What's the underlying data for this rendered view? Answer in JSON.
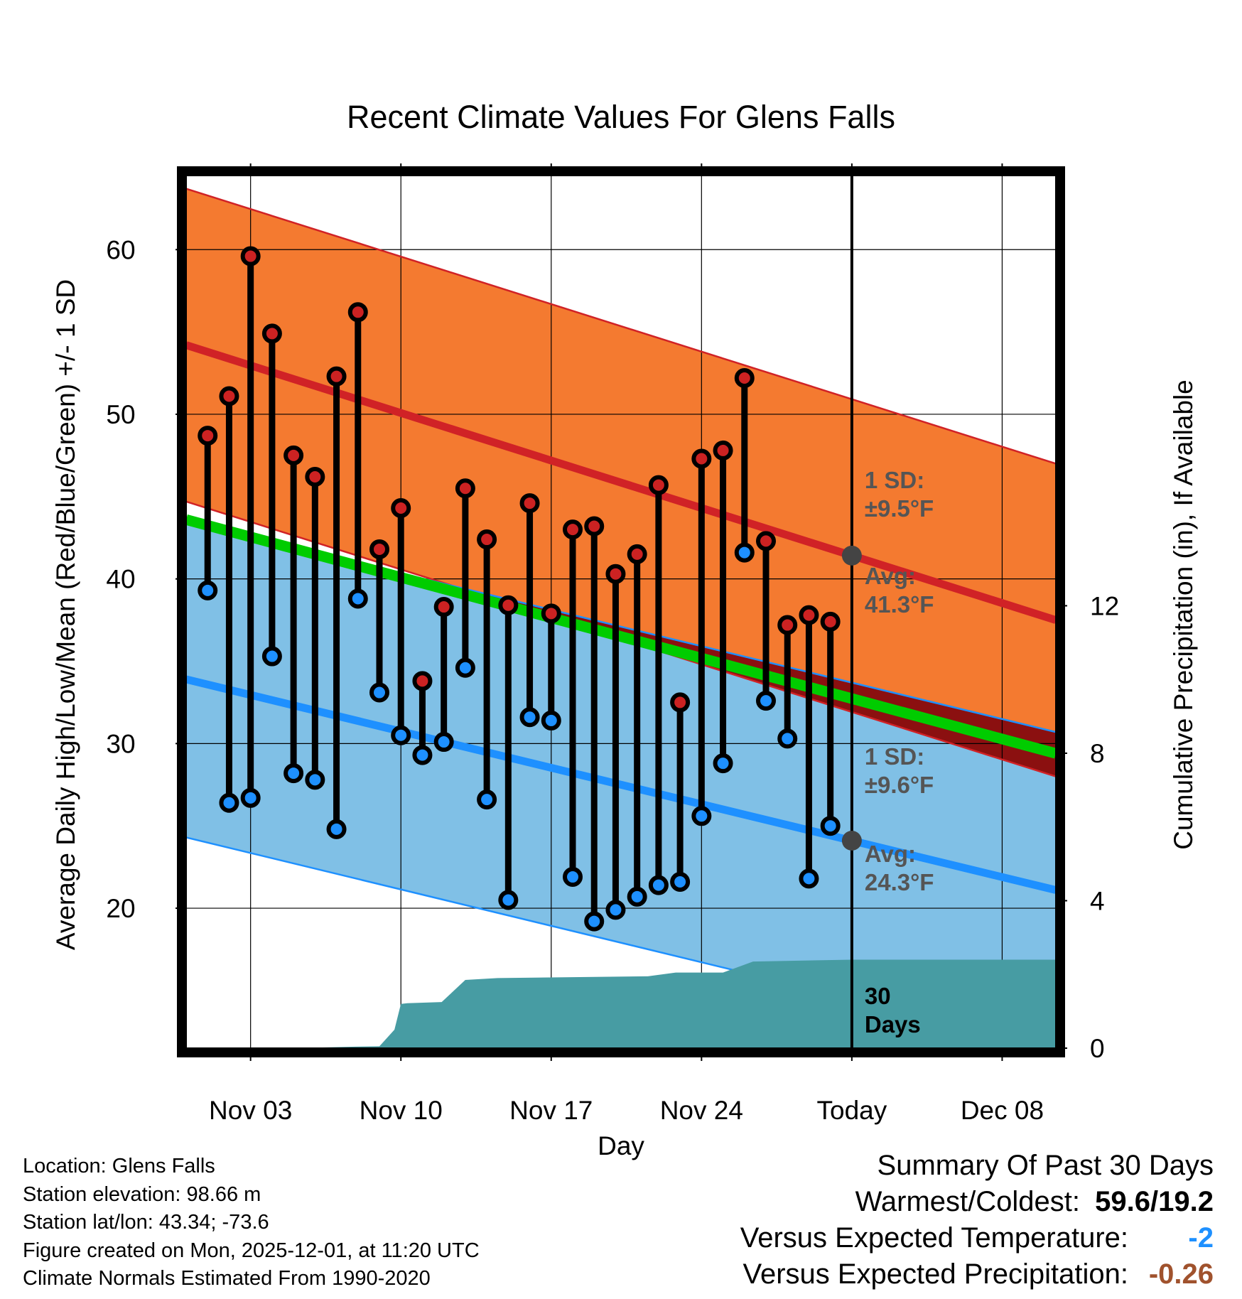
{
  "chart_data": {
    "type": "line",
    "title": "Recent Climate Values For Glens Falls",
    "xlabel": "Day",
    "ylabel_left": "Average Daily High/Low/Mean (Red/Blue/Green) +/- 1 SD",
    "ylabel_right": "Cumulative Precipitation (in), If Available",
    "ylim_left": [
      11.5,
      64.5
    ],
    "yticks_left": [
      "20",
      "30",
      "40",
      "50",
      "60"
    ],
    "ylim_right": [
      0,
      23.67
    ],
    "yticks_right": [
      "0",
      "4",
      "8",
      "12"
    ],
    "xlim_days": [
      -3.0,
      37.5
    ],
    "xtick_days": [
      0,
      7,
      14,
      21,
      28,
      35
    ],
    "xtick_labels": [
      "Nov 03",
      "Nov 10",
      "Nov 17",
      "Nov 24",
      "Today",
      "Dec 08"
    ],
    "today_day": 28,
    "normal_high_start": 54.2,
    "normal_high_end": 37.5,
    "normal_high_sd": 9.5,
    "normal_low_start": 33.9,
    "normal_low_end": 21.1,
    "normal_low_sd": 9.6,
    "normal_mean_start": 43.6,
    "normal_mean_end": 29.4,
    "daily_highs": [
      48.7,
      51.1,
      59.6,
      54.9,
      47.5,
      46.2,
      52.3,
      56.2,
      41.8,
      44.3,
      33.8,
      38.3,
      45.5,
      42.4,
      38.4,
      44.6,
      37.9,
      43.0,
      43.2,
      40.3,
      41.5,
      45.7,
      32.5,
      47.3,
      47.8,
      52.2,
      42.3,
      37.2,
      37.8,
      37.4
    ],
    "daily_lows": [
      39.3,
      26.4,
      26.7,
      35.3,
      28.2,
      27.8,
      24.8,
      38.8,
      33.1,
      30.5,
      29.3,
      30.1,
      34.6,
      26.6,
      20.5,
      31.6,
      31.4,
      21.9,
      19.2,
      19.9,
      20.7,
      21.4,
      21.6,
      25.6,
      28.8,
      41.6,
      32.6,
      30.3,
      21.8,
      25.0
    ],
    "precip_cumulative": [
      [
        2.0,
        0.0
      ],
      [
        4.9,
        0.04
      ],
      [
        6.0,
        0.05
      ],
      [
        6.7,
        0.5
      ],
      [
        7.0,
        1.2
      ],
      [
        7.3,
        1.22
      ],
      [
        8.9,
        1.25
      ],
      [
        10.0,
        1.85
      ],
      [
        11.5,
        1.9
      ],
      [
        18.5,
        1.95
      ],
      [
        19.8,
        2.05
      ],
      [
        22.0,
        2.05
      ],
      [
        23.4,
        2.35
      ],
      [
        28.0,
        2.4
      ],
      [
        37.5,
        2.4
      ]
    ],
    "annotations": {
      "high_sd_label": "1 SD:",
      "high_sd_value": "±9.5°F",
      "high_avg_label": "Avg:",
      "high_avg_value": "41.3°F",
      "low_sd_label": "1 SD:",
      "low_sd_value": "±9.6°F",
      "low_avg_label": "Avg:",
      "low_avg_value": "24.3°F",
      "days_label": "30",
      "days_label2": "Days"
    },
    "colors": {
      "high_band": "#f47a30",
      "high_line": "#d02226",
      "low_band": "#80c0e6",
      "low_line": "#1e90ff",
      "mean_line": "#00cc00",
      "overlap": "#8b1010",
      "precip": "#479ca3",
      "high_dot": "#cc2222",
      "low_dot": "#1e90ff",
      "avg_marker": "#444444",
      "annotation_text": "#555555"
    }
  },
  "info": {
    "location": "Location: Glens Falls",
    "elevation": "Station elevation: 98.66 m",
    "latlon": "Station lat/lon: 43.34; -73.6",
    "created": "Figure created on Mon, 2025-12-01, at 11:20 UTC",
    "normals": "Climate Normals Estimated From 1990-2020"
  },
  "summary": {
    "title": "Summary Of Past 30 Days",
    "warm_cold_label": "Warmest/Coldest:",
    "warm_cold_value": "59.6/19.2",
    "temp_label": "Versus Expected Temperature:",
    "temp_value": "-2",
    "temp_color": "#1e90ff",
    "precip_label": "Versus Expected Precipitation:",
    "precip_value": "-0.26",
    "precip_color": "#a0522d"
  }
}
